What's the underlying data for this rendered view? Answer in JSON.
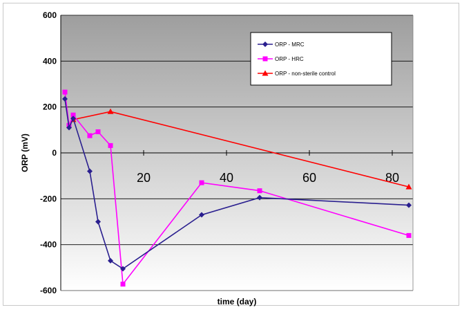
{
  "chart_data": {
    "type": "line",
    "title": "",
    "xlabel": "time (day)",
    "ylabel": "ORP (mV)",
    "xlim": [
      0,
      85
    ],
    "ylim": [
      -600,
      600
    ],
    "x_ticks": [
      20,
      40,
      60,
      80
    ],
    "y_ticks": [
      -600,
      -400,
      -200,
      0,
      200,
      400,
      600
    ],
    "grid": "horizontal",
    "legend_position": "top-right",
    "background": "gray-to-white vertical gradient",
    "series": [
      {
        "name": "ORP - MRC",
        "color": "#2a1f8f",
        "marker": "diamond",
        "points": [
          [
            1,
            235
          ],
          [
            2,
            110
          ],
          [
            3,
            150
          ],
          [
            7,
            -80
          ],
          [
            9,
            -300
          ],
          [
            12,
            -470
          ],
          [
            15,
            -505
          ],
          [
            34,
            -270
          ],
          [
            48,
            -195
          ],
          [
            84,
            -228
          ]
        ]
      },
      {
        "name": "ORP - HRC",
        "color": "#ff00ff",
        "marker": "square",
        "points": [
          [
            1,
            265
          ],
          [
            2,
            120
          ],
          [
            3,
            165
          ],
          [
            7,
            75
          ],
          [
            9,
            92
          ],
          [
            12,
            32
          ],
          [
            15,
            -572
          ],
          [
            34,
            -130
          ],
          [
            48,
            -165
          ],
          [
            84,
            -360
          ]
        ]
      },
      {
        "name": "ORP - non-sterile control",
        "color": "#ff0000",
        "marker": "triangle",
        "points": [
          [
            3,
            145
          ],
          [
            12,
            180
          ],
          [
            84,
            -148
          ]
        ]
      }
    ]
  }
}
